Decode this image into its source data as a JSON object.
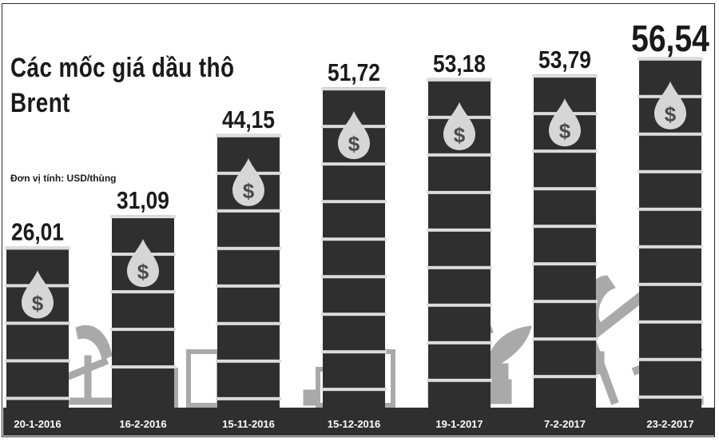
{
  "chart_data": {
    "type": "bar",
    "title": "Các mốc giá dầu thô Brent",
    "unit_note": "Đơn vị tính: USD/thùng",
    "categories": [
      "20-1-2016",
      "16-2-2016",
      "15-11-2016",
      "15-12-2016",
      "19-1-2017",
      "7-2-2017",
      "23-2-2017"
    ],
    "values": [
      26.01,
      31.09,
      44.15,
      51.72,
      53.18,
      53.79,
      56.54
    ],
    "value_labels": [
      "26,01",
      "31,09",
      "44,15",
      "51,72",
      "53,18",
      "53,79",
      "56,54"
    ],
    "ylim": [
      0,
      60
    ],
    "colors": {
      "barrel": "#2f2f2f",
      "ring": "#dcdcdc",
      "drop": "#d6d6d6",
      "silhouette": "#a9a9a9",
      "axis_band": "#2f2f2f"
    }
  }
}
